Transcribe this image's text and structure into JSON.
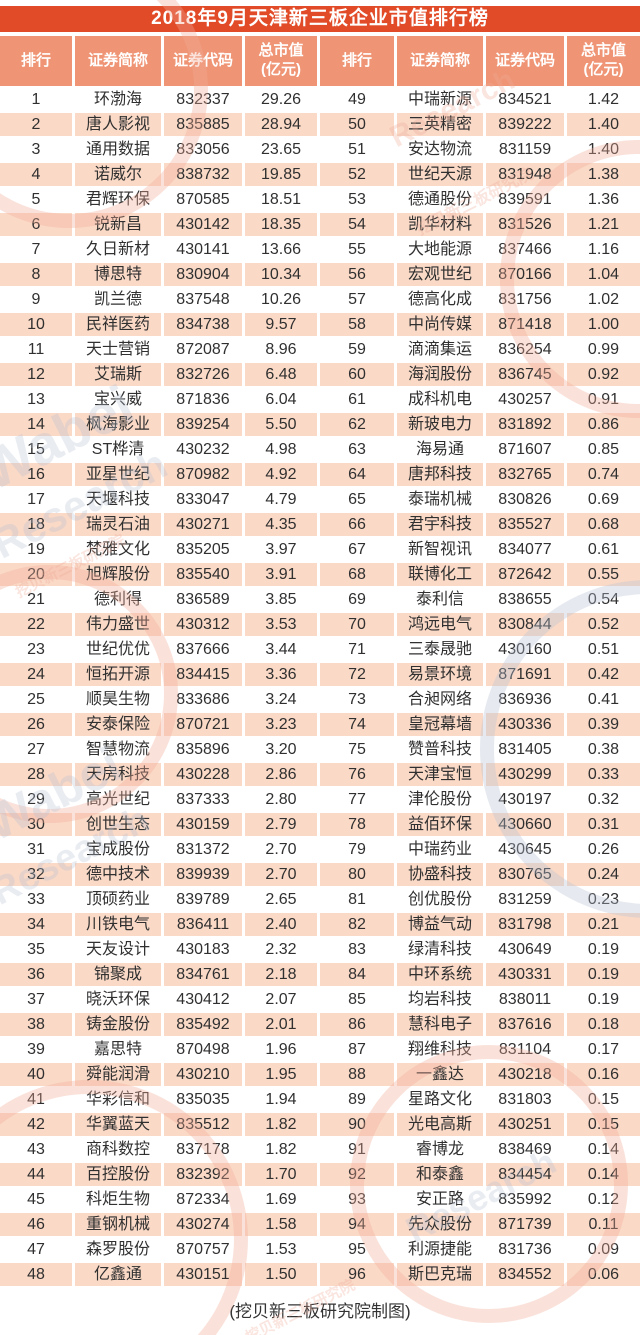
{
  "title": "2018年9月天津新三板企业市值排行榜",
  "header": {
    "columns": [
      "排行",
      "证券简称",
      "证券代码",
      "总市值\n(亿元)"
    ]
  },
  "footer": {
    "credit": "(挖贝新三板研究院制图)"
  },
  "watermark": {
    "brand": "Wabei",
    "brand2": "Research",
    "cn": "挖贝新三板研究院"
  },
  "colors": {
    "title_bg": "#e24b28",
    "header_bg": "#ef9474",
    "row_bg": "#ffffff",
    "row_alt_bg": "#fad9c6",
    "text": "#303030",
    "title_text": "#ffffff"
  },
  "chart_data": {
    "type": "table",
    "title": "2018年9月天津新三板企业市值排行榜",
    "columns": [
      "排行",
      "证券简称",
      "证券代码",
      "总市值(亿元)"
    ],
    "layout": "two column groups: ranks 1-48 left, ranks 49-96 right; alternating row shading",
    "rows": [
      [
        1,
        "环渤海",
        "832337",
        "29.26"
      ],
      [
        2,
        "唐人影视",
        "835885",
        "28.94"
      ],
      [
        3,
        "通用数据",
        "833056",
        "23.65"
      ],
      [
        4,
        "诺威尔",
        "838732",
        "19.85"
      ],
      [
        5,
        "君辉环保",
        "870585",
        "18.51"
      ],
      [
        6,
        "锐新昌",
        "430142",
        "18.35"
      ],
      [
        7,
        "久日新材",
        "430141",
        "13.66"
      ],
      [
        8,
        "博思特",
        "830904",
        "10.34"
      ],
      [
        9,
        "凯兰德",
        "837548",
        "10.26"
      ],
      [
        10,
        "民祥医药",
        "834738",
        "9.57"
      ],
      [
        11,
        "天士营销",
        "872087",
        "8.96"
      ],
      [
        12,
        "艾瑞斯",
        "832726",
        "6.48"
      ],
      [
        13,
        "宝兴威",
        "871836",
        "6.04"
      ],
      [
        14,
        "枫海影业",
        "839254",
        "5.50"
      ],
      [
        15,
        "ST桦清",
        "430232",
        "4.98"
      ],
      [
        16,
        "亚星世纪",
        "870982",
        "4.92"
      ],
      [
        17,
        "天堰科技",
        "833047",
        "4.79"
      ],
      [
        18,
        "瑞灵石油",
        "430271",
        "4.35"
      ],
      [
        19,
        "梵雅文化",
        "835205",
        "3.97"
      ],
      [
        20,
        "旭辉股份",
        "835540",
        "3.91"
      ],
      [
        21,
        "德利得",
        "836589",
        "3.85"
      ],
      [
        22,
        "伟力盛世",
        "430312",
        "3.53"
      ],
      [
        23,
        "世纪优优",
        "837666",
        "3.44"
      ],
      [
        24,
        "恒拓开源",
        "834415",
        "3.36"
      ],
      [
        25,
        "顺昊生物",
        "833686",
        "3.24"
      ],
      [
        26,
        "安泰保险",
        "870721",
        "3.23"
      ],
      [
        27,
        "智慧物流",
        "835896",
        "3.20"
      ],
      [
        28,
        "天房科技",
        "430228",
        "2.86"
      ],
      [
        29,
        "高光世纪",
        "837333",
        "2.80"
      ],
      [
        30,
        "创世生态",
        "430159",
        "2.79"
      ],
      [
        31,
        "宝成股份",
        "831372",
        "2.70"
      ],
      [
        32,
        "德中技术",
        "839939",
        "2.70"
      ],
      [
        33,
        "顶硕药业",
        "839789",
        "2.65"
      ],
      [
        34,
        "川铁电气",
        "836411",
        "2.40"
      ],
      [
        35,
        "天友设计",
        "430183",
        "2.32"
      ],
      [
        36,
        "锦聚成",
        "834761",
        "2.18"
      ],
      [
        37,
        "晓沃环保",
        "430412",
        "2.07"
      ],
      [
        38,
        "铸金股份",
        "835492",
        "2.01"
      ],
      [
        39,
        "嘉思特",
        "870498",
        "1.96"
      ],
      [
        40,
        "舜能润滑",
        "430210",
        "1.95"
      ],
      [
        41,
        "华彩信和",
        "835035",
        "1.94"
      ],
      [
        42,
        "华翼蓝天",
        "835512",
        "1.82"
      ],
      [
        43,
        "商科数控",
        "837178",
        "1.82"
      ],
      [
        44,
        "百控股份",
        "832392",
        "1.70"
      ],
      [
        45,
        "科炬生物",
        "872334",
        "1.69"
      ],
      [
        46,
        "重钢机械",
        "430274",
        "1.58"
      ],
      [
        47,
        "森罗股份",
        "870757",
        "1.53"
      ],
      [
        48,
        "亿鑫通",
        "430151",
        "1.50"
      ],
      [
        49,
        "中瑞新源",
        "834521",
        "1.42"
      ],
      [
        50,
        "三英精密",
        "839222",
        "1.40"
      ],
      [
        51,
        "安达物流",
        "831159",
        "1.40"
      ],
      [
        52,
        "世纪天源",
        "831948",
        "1.38"
      ],
      [
        53,
        "德通股份",
        "839591",
        "1.36"
      ],
      [
        54,
        "凯华材料",
        "831526",
        "1.21"
      ],
      [
        55,
        "大地能源",
        "837466",
        "1.16"
      ],
      [
        56,
        "宏观世纪",
        "870166",
        "1.04"
      ],
      [
        57,
        "德高化成",
        "831756",
        "1.02"
      ],
      [
        58,
        "中尚传媒",
        "871418",
        "1.00"
      ],
      [
        59,
        "滴滴集运",
        "836254",
        "0.99"
      ],
      [
        60,
        "海润股份",
        "836745",
        "0.92"
      ],
      [
        61,
        "成科机电",
        "430257",
        "0.91"
      ],
      [
        62,
        "新玻电力",
        "831892",
        "0.86"
      ],
      [
        63,
        "海易通",
        "871607",
        "0.85"
      ],
      [
        64,
        "唐邦科技",
        "832765",
        "0.74"
      ],
      [
        65,
        "泰瑞机械",
        "830826",
        "0.69"
      ],
      [
        66,
        "君宇科技",
        "835527",
        "0.68"
      ],
      [
        67,
        "新智视讯",
        "834077",
        "0.61"
      ],
      [
        68,
        "联博化工",
        "872642",
        "0.55"
      ],
      [
        69,
        "泰利信",
        "838655",
        "0.54"
      ],
      [
        70,
        "鸿远电气",
        "830844",
        "0.52"
      ],
      [
        71,
        "三泰晟驰",
        "430160",
        "0.51"
      ],
      [
        72,
        "易景环境",
        "871691",
        "0.42"
      ],
      [
        73,
        "合昶网络",
        "836936",
        "0.41"
      ],
      [
        74,
        "皇冠幕墙",
        "430336",
        "0.39"
      ],
      [
        75,
        "赞普科技",
        "831405",
        "0.38"
      ],
      [
        76,
        "天津宝恒",
        "430299",
        "0.33"
      ],
      [
        77,
        "津伦股份",
        "430197",
        "0.32"
      ],
      [
        78,
        "益佰环保",
        "430660",
        "0.31"
      ],
      [
        79,
        "中瑞药业",
        "430645",
        "0.26"
      ],
      [
        80,
        "协盛科技",
        "830765",
        "0.24"
      ],
      [
        81,
        "创优股份",
        "831259",
        "0.23"
      ],
      [
        82,
        "博益气动",
        "831798",
        "0.21"
      ],
      [
        83,
        "绿清科技",
        "430649",
        "0.19"
      ],
      [
        84,
        "中环系统",
        "430331",
        "0.19"
      ],
      [
        85,
        "均岩科技",
        "838011",
        "0.19"
      ],
      [
        86,
        "慧科电子",
        "837616",
        "0.18"
      ],
      [
        87,
        "翔维科技",
        "831104",
        "0.17"
      ],
      [
        88,
        "一鑫达",
        "430218",
        "0.16"
      ],
      [
        89,
        "星路文化",
        "831803",
        "0.15"
      ],
      [
        90,
        "光电高斯",
        "430251",
        "0.15"
      ],
      [
        91,
        "睿博龙",
        "838469",
        "0.14"
      ],
      [
        92,
        "和泰鑫",
        "834454",
        "0.14"
      ],
      [
        93,
        "安正路",
        "835992",
        "0.12"
      ],
      [
        94,
        "先众股份",
        "871739",
        "0.11"
      ],
      [
        95,
        "利源捷能",
        "831736",
        "0.09"
      ],
      [
        96,
        "斯巴克瑞",
        "834552",
        "0.06"
      ]
    ]
  }
}
